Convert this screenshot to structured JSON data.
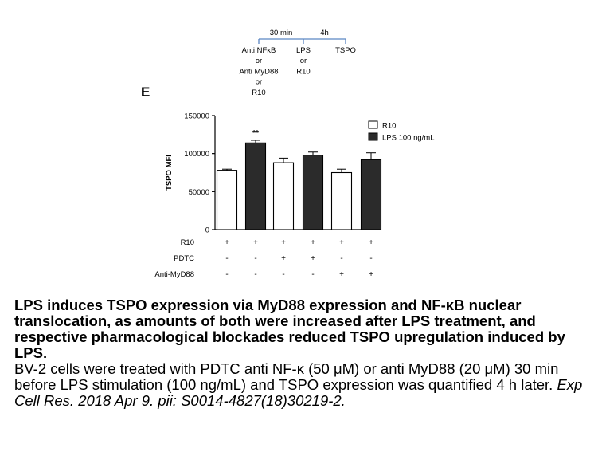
{
  "timeline": {
    "intervals": [
      "30 min",
      "4h"
    ],
    "steps": [
      {
        "lines": [
          "Anti NFκB",
          "or",
          "Anti MyD88",
          "or",
          "R10"
        ]
      },
      {
        "lines": [
          "LPS",
          "or",
          "R10"
        ]
      },
      {
        "lines": [
          "TSPO"
        ]
      }
    ]
  },
  "panel_label": "E",
  "chart_data": {
    "type": "bar",
    "ylabel": "TSPO MFI",
    "ylim": [
      0,
      150000
    ],
    "yticks": [
      0,
      50000,
      100000,
      150000
    ],
    "ytick_labels": [
      "0",
      "50000",
      "100000",
      "150000"
    ],
    "series": [
      {
        "name": "R10",
        "color": "#ffffff"
      },
      {
        "name": "LPS 100 ng/mL",
        "color": "#2b2b2b"
      }
    ],
    "bars": [
      {
        "series": 0,
        "value": 78000,
        "error": 1500,
        "annotation": ""
      },
      {
        "series": 1,
        "value": 114000,
        "error": 3500,
        "annotation": "**"
      },
      {
        "series": 0,
        "value": 88000,
        "error": 6000,
        "annotation": ""
      },
      {
        "series": 1,
        "value": 98000,
        "error": 4000,
        "annotation": ""
      },
      {
        "series": 0,
        "value": 75000,
        "error": 4500,
        "annotation": ""
      },
      {
        "series": 1,
        "value": 92000,
        "error": 9000,
        "annotation": ""
      }
    ],
    "legend_position": "top-right",
    "conditions": [
      {
        "label": "R10",
        "values": [
          "+",
          "+",
          "+",
          "+",
          "+",
          "+"
        ]
      },
      {
        "label": "PDTC",
        "values": [
          "-",
          "-",
          "+",
          "+",
          "-",
          "-"
        ]
      },
      {
        "label": "Anti-MyD88",
        "values": [
          "-",
          "-",
          "-",
          "-",
          "+",
          "+"
        ]
      }
    ]
  },
  "caption": {
    "title": "LPS induces TSPO expression via MyD88 expression and NF-κB nuclear translocation, as amounts of both were increased after LPS treatment, and respective pharmacological blockades reduced TSPO upregulation induced by LPS.",
    "body": "BV-2 cells were treated with PDTC anti NF-κ (50 μM) or anti MyD88 (20 μM) 30 min before LPS stimulation (100 ng/mL) and TSPO expression was quantified 4 h later.",
    "citation": "Exp Cell Res. 2018 Apr 9. pii: S0014-4827(18)30219-2."
  }
}
